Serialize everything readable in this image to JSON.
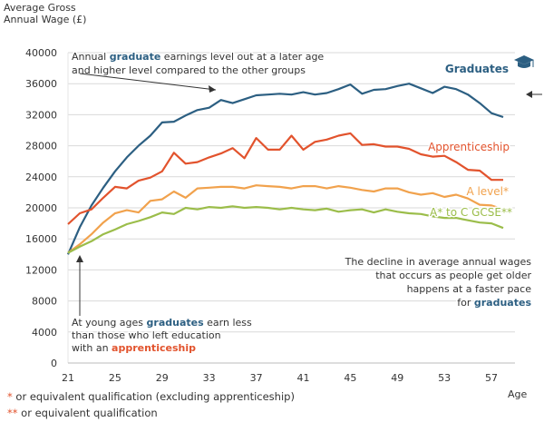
{
  "chart_data": {
    "type": "line",
    "ylabel_line1": "Average Gross",
    "ylabel_line2": "Annual Wage (£)",
    "xlabel": "Age",
    "ylim": [
      0,
      40000
    ],
    "xlim": [
      21,
      59
    ],
    "yticks": [
      0,
      4000,
      8000,
      12000,
      16000,
      20000,
      24000,
      28000,
      32000,
      36000,
      40000
    ],
    "xticks": [
      21,
      25,
      29,
      33,
      37,
      41,
      45,
      49,
      53,
      57
    ],
    "grid": true,
    "series": [
      {
        "name": "Graduates",
        "color": "#2c5f82",
        "x": [
          21,
          22,
          23,
          24,
          25,
          26,
          27,
          28,
          29,
          30,
          31,
          32,
          33,
          34,
          35,
          36,
          37,
          38,
          39,
          40,
          41,
          42,
          43,
          44,
          45,
          46,
          47,
          48,
          49,
          50,
          51,
          52,
          53,
          54,
          55,
          56,
          57,
          58
        ],
        "values": [
          14000,
          17500,
          20300,
          22600,
          24700,
          26500,
          28000,
          29300,
          31000,
          31100,
          31900,
          32600,
          32900,
          33900,
          33500,
          34000,
          34500,
          34600,
          34700,
          34600,
          34900,
          34600,
          34800,
          35300,
          35900,
          34700,
          35200,
          35300,
          35700,
          36000,
          35400,
          34800,
          35600,
          35300,
          34600,
          33500,
          32200,
          31700
        ]
      },
      {
        "name": "Apprenticeship",
        "color": "#e2532d",
        "x": [
          21,
          22,
          23,
          24,
          25,
          26,
          27,
          28,
          29,
          30,
          31,
          32,
          33,
          34,
          35,
          36,
          37,
          38,
          39,
          40,
          41,
          42,
          43,
          44,
          45,
          46,
          47,
          48,
          49,
          50,
          51,
          52,
          53,
          54,
          55,
          56,
          57,
          58
        ],
        "values": [
          17900,
          19300,
          19800,
          21300,
          22700,
          22500,
          23500,
          23900,
          24700,
          27100,
          25700,
          25900,
          26500,
          27000,
          27700,
          26400,
          29000,
          27500,
          27500,
          29300,
          27500,
          28500,
          28800,
          29300,
          29600,
          28100,
          28200,
          27900,
          27900,
          27600,
          26900,
          26600,
          26700,
          25900,
          24900,
          24800,
          23600,
          23600
        ]
      },
      {
        "name": "A level*",
        "color": "#f1a24d",
        "x": [
          21,
          22,
          23,
          24,
          25,
          26,
          27,
          28,
          29,
          30,
          31,
          32,
          33,
          34,
          35,
          36,
          37,
          38,
          39,
          40,
          41,
          42,
          43,
          44,
          45,
          46,
          47,
          48,
          49,
          50,
          51,
          52,
          53,
          54,
          55,
          56,
          57,
          58
        ],
        "values": [
          14200,
          15300,
          16600,
          18100,
          19300,
          19700,
          19400,
          20900,
          21100,
          22100,
          21300,
          22500,
          22600,
          22700,
          22700,
          22500,
          22900,
          22800,
          22700,
          22500,
          22800,
          22800,
          22500,
          22800,
          22600,
          22300,
          22100,
          22500,
          22500,
          22000,
          21700,
          21900,
          21400,
          21700,
          21200,
          20400,
          20300,
          19800
        ]
      },
      {
        "name": "A* to C GCSE**",
        "color": "#9bbd4a",
        "x": [
          21,
          22,
          23,
          24,
          25,
          26,
          27,
          28,
          29,
          30,
          31,
          32,
          33,
          34,
          35,
          36,
          37,
          38,
          39,
          40,
          41,
          42,
          43,
          44,
          45,
          46,
          47,
          48,
          49,
          50,
          51,
          52,
          53,
          54,
          55,
          56,
          57,
          58
        ],
        "values": [
          14200,
          15000,
          15700,
          16600,
          17200,
          17900,
          18300,
          18800,
          19400,
          19200,
          20000,
          19800,
          20100,
          20000,
          20200,
          20000,
          20100,
          20000,
          19800,
          20000,
          19800,
          19700,
          19900,
          19500,
          19700,
          19800,
          19400,
          19800,
          19500,
          19300,
          19200,
          18900,
          18700,
          18700,
          18400,
          18100,
          18000,
          17400
        ]
      }
    ],
    "annotations": [
      {
        "lines": [
          [
            {
              "t": "Annual "
            },
            {
              "t": "graduate",
              "hl": "#2c5f82"
            },
            {
              "t": " earnings level out at a later age"
            }
          ],
          [
            {
              "t": "and higher level compared to the other groups"
            }
          ]
        ]
      },
      {
        "lines": [
          [
            {
              "t": "The decline in average annual wages"
            }
          ],
          [
            {
              "t": "that occurs as people get older"
            }
          ],
          [
            {
              "t": "happens at a faster pace"
            }
          ],
          [
            {
              "t": "for "
            },
            {
              "t": "graduates",
              "hl": "#2c5f82"
            }
          ]
        ]
      },
      {
        "lines": [
          [
            {
              "t": "At young ages "
            },
            {
              "t": "graduates",
              "hl": "#2c5f82"
            },
            {
              "t": " earn less"
            }
          ],
          [
            {
              "t": "than those who left education"
            }
          ],
          [
            {
              "t": "with an "
            },
            {
              "t": "apprenticeship",
              "hl": "#e2532d"
            }
          ]
        ]
      }
    ]
  },
  "footnotes": {
    "note1_star": "*",
    "note1_text": " or equivalent qualification (excluding apprenticeship)",
    "note2_star": "**",
    "note2_text": " or equivalent qualification"
  }
}
